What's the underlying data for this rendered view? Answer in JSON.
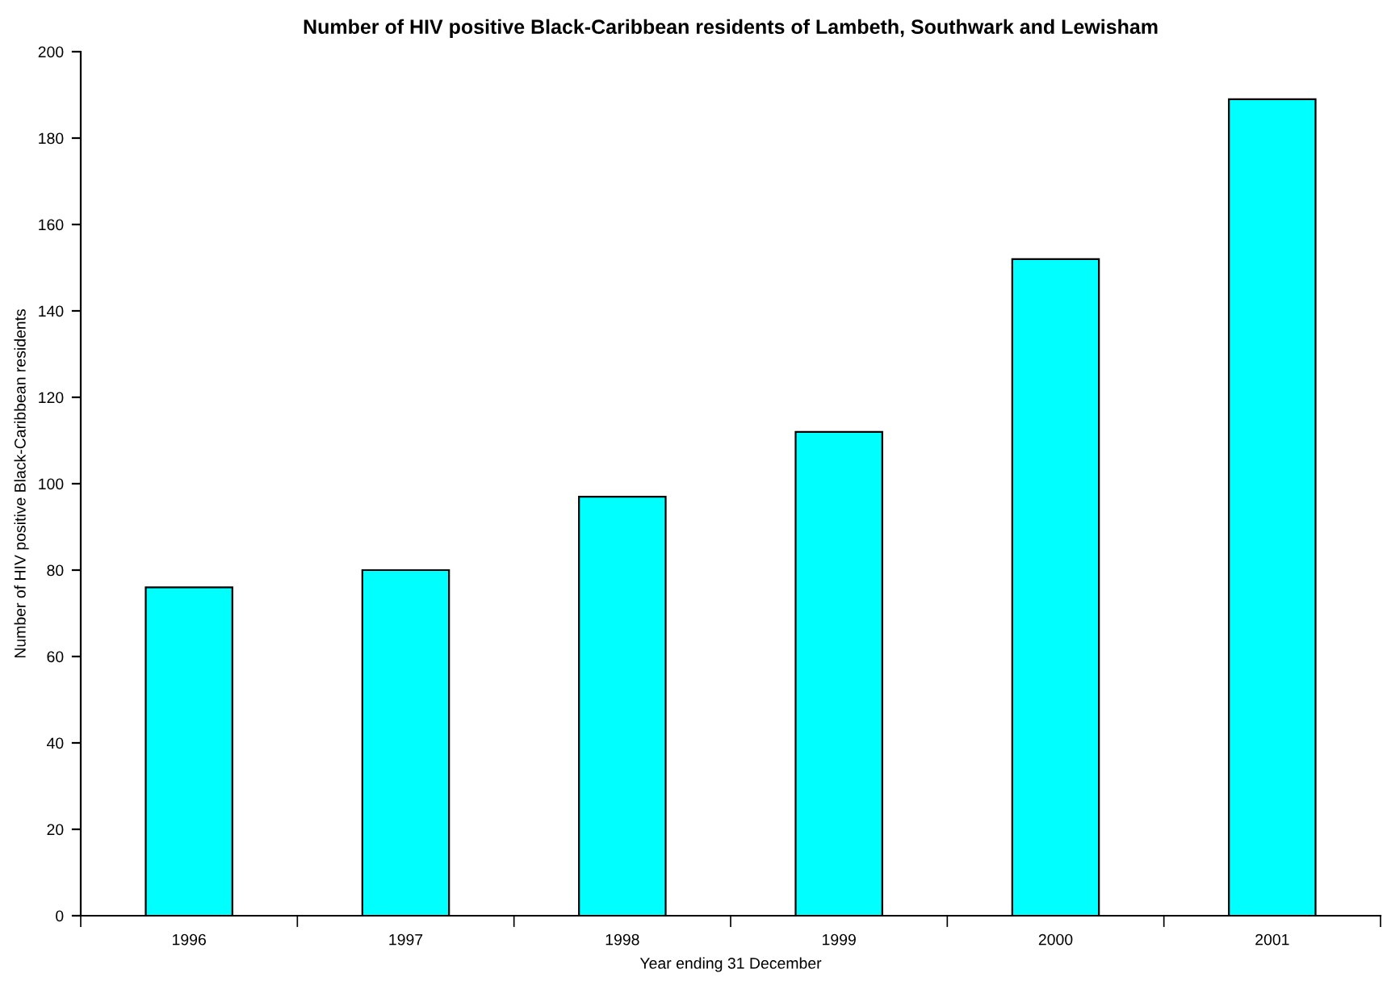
{
  "chart_data": {
    "type": "bar",
    "title": "Number of HIV positive Black-Caribbean residents of Lambeth, Southwark and Lewisham",
    "xlabel": "Year ending 31 December",
    "ylabel": "Number of HIV positive Black-Caribbean residents",
    "categories": [
      "1996",
      "1997",
      "1998",
      "1999",
      "2000",
      "2001"
    ],
    "values": [
      76,
      80,
      97,
      112,
      152,
      189
    ],
    "color": "#00ffff",
    "ylim": [
      0,
      200
    ],
    "yticks": [
      0,
      20,
      40,
      60,
      80,
      100,
      120,
      140,
      160,
      180,
      200
    ],
    "grid": false,
    "legend": false
  }
}
